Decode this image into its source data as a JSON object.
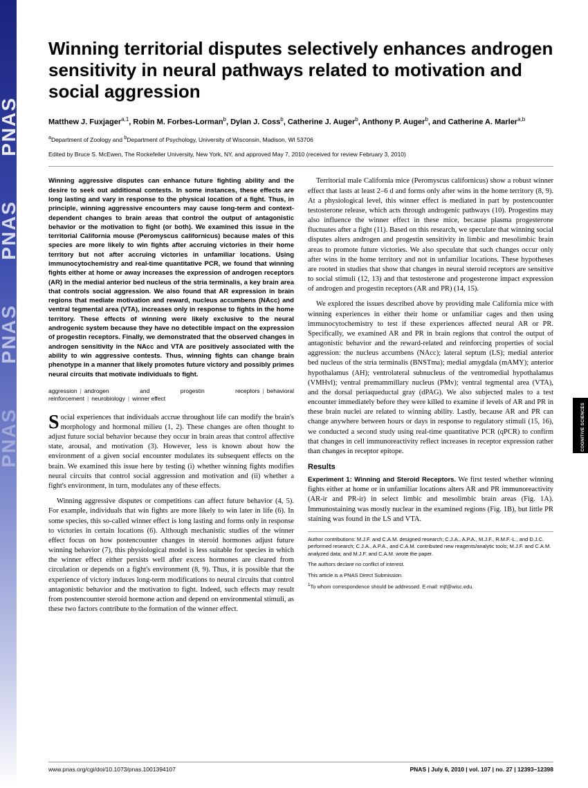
{
  "journal": {
    "vertical_label": "PNAS",
    "vertical_positions": [
      140,
      290,
      440,
      590
    ]
  },
  "title": "Winning territorial disputes selectively enhances androgen sensitivity in neural pathways related to motivation and social aggression",
  "authors_html": "Matthew J. Fuxjager<sup>a,1</sup>, Robin M. Forbes-Lorman<sup>b</sup>, Dylan J. Coss<sup>b</sup>, Catherine J. Auger<sup>b</sup>, Anthony P. Auger<sup>b</sup>, and Catherine A. Marler<sup>a,b</sup>",
  "affiliations": "<sup>a</sup>Department of Zoology and <sup>b</sup>Department of Psychology, University of Wisconsin, Madison, WI 53706",
  "edited": "Edited by Bruce S. McEwen, The Rockefeller University, New York, NY, and approved May 7, 2010 (received for review February 3, 2010)",
  "abstract": "Winning aggressive disputes can enhance future fighting ability and the desire to seek out additional contests. In some instances, these effects are long lasting and vary in response to the physical location of a fight. Thus, in principle, winning aggressive encounters may cause long-term and context-dependent changes to brain areas that control the output of antagonistic behavior or the motivation to fight (or both). We examined this issue in the territorial California mouse (Peromyscus californicus) because males of this species are more likely to win fights after accruing victories in their home territory but not after accruing victories in unfamiliar locations. Using immunocytochemistry and real-time quantitative PCR, we found that winning fights either at home or away increases the expression of androgen receptors (AR) in the medial anterior bed nucleus of the stria terminalis, a key brain area that controls social aggression. We also found that AR expression in brain regions that mediate motivation and reward, nucleus accumbens (NAcc) and ventral tegmental area (VTA), increases only in response to fights in the home territory. These effects of winning were likely exclusive to the neural androgenic system because they have no detectible impact on the expression of progestin receptors. Finally, we demonstrated that the observed changes in androgen sensitivity in the NAcc and VTA are positively associated with the ability to win aggressive contests. Thus, winning fights can change brain phenotype in a manner that likely promotes future victory and possibly primes neural circuits that motivate individuals to fight.",
  "keywords": [
    "aggression",
    "androgen and progestin receptors",
    "behavioral reinforcement",
    "neurobiology",
    "winner effect"
  ],
  "body": {
    "p1": "Social experiences that individuals accrue throughout life can modify the brain's morphology and hormonal milieu (1, 2). These changes are often thought to adjust future social behavior because they occur in brain areas that control affective state, arousal, and motivation (3). However, less is known about how the environment of a given social encounter modulates its subsequent effects on the brain. We examined this issue here by testing (i) whether winning fights modifies neural circuits that control social aggression and motivation and (ii) whether a fight's environment, in turn, modulates any of these effects.",
    "p2": "Winning aggressive disputes or competitions can affect future behavior (4, 5). For example, individuals that win fights are more likely to win later in life (6). In some species, this so-called winner effect is long lasting and forms only in response to victories in certain locations (6). Although mechanistic studies of the winner effect focus on how postencounter changes in steroid hormones adjust future winning behavior (7), this physiological model is less suitable for species in which the winner effect either persists well after excess hormones are cleared from circulation or depends on a fight's environment (8, 9). Thus, it is possible that the experience of victory induces long-term modifications to neural circuits that control antagonistic behavior and the motivation to fight. Indeed, such effects may result from postencounter steroid hormone action and depend on environmental stimuli, as these two factors contribute to the formation of the winner effect.",
    "p3": "Territorial male California mice (Peromyscus californicus) show a robust winner effect that lasts at least 2–6 d and forms only after wins in the home territory (8, 9). At a physiological level, this winner effect is mediated in part by postencounter testosterone release, which acts through androgenic pathways (10). Progestins may also influence the winner effect in these mice, because plasma progesterone fluctuates after a fight (11). Based on this research, we speculate that winning social disputes alters androgen and progestin sensitivity in limbic and mesolimbic brain areas to promote future victories. We also speculate that such changes occur only after wins in the home territory and not in unfamiliar locations. These hypotheses are rooted in studies that show that changes in neural steroid receptors are sensitive to social stimuli (12, 13) and that testosterone and progesterone impact expression of androgen and progestin receptors (AR and PR) (14, 15).",
    "p4": "We explored the issues described above by providing male California mice with winning experiences in either their home or unfamiliar cages and then using immunocytochemistry to test if these experiences affected neural AR or PR. Specifically, we examined AR and PR in brain regions that control the output of antagonistic behavior and the reward-related and reinforcing properties of social aggression: the nucleus accumbens (NAcc); lateral septum (LS); medial anterior bed nucleus of the stria terminalis (BNSTma); medial amygdala (mAMY); anterior hypothalamus (AH); ventrolateral subnucleus of the ventromedial hypothalamus (VMHvl); ventral premammillary nucleus (PMv); ventral tegmental area (VTA), and the dorsal periaqueductal gray (dPAG). We also subjected males to a test encounter immediately before they were killed to examine if levels of AR and PR in these brain nuclei are related to winning ability. Lastly, because AR and PR can change anywhere between hours or days in response to regulatory stimuli (15, 16), we conducted a second study using real-time quantitative PCR (qPCR) to confirm that changes in cell immunoreactivity reflect increases in receptor expression rather than changes in receptor epitope.",
    "results_head": "Results",
    "exp1_head": "Experiment 1: Winning and Steroid Receptors.",
    "exp1_text": " We first tested whether winning fights either at home or in unfamiliar locations alters AR and PR immunoreactivity (AR-ir and PR-ir) in select limbic and mesolimbic brain areas (Fig. 1A). Immunostaining was mostly nuclear in the examined regions (Fig. 1B), but little PR staining was found in the LS and VTA."
  },
  "footnotes": {
    "contrib": "Author contributions: M.J.F. and C.A.M. designed research; C.J.A., A.P.A., M.J.F., R.M.F.-L., and D.J.C. performed research; C.J.A., A.P.A., and C.A.M. contributed new reagents/analytic tools; M.J.F. and C.A.M. analyzed data; and M.J.F. and C.A.M. wrote the paper.",
    "conflict": "The authors declare no conflict of interest.",
    "direct": "This article is a PNAS Direct Submission.",
    "corresp": "<sup>1</sup>To whom correspondence should be addressed. E-mail: mjf@wisc.edu."
  },
  "footer": {
    "left": "www.pnas.org/cgi/doi/10.1073/pnas.1001394107",
    "right": "PNAS | July 6, 2010 | vol. 107 | no. 27 | 12393–12398"
  },
  "side_tab": "PSYCHOLOGICAL AND COGNITIVE SCIENCES"
}
